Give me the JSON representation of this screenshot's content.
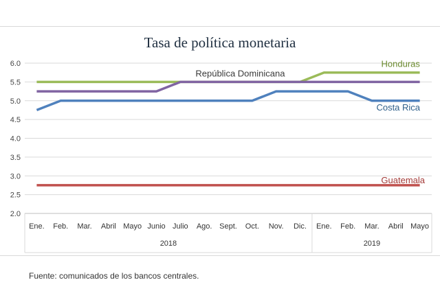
{
  "chart_data": {
    "type": "line",
    "title": "Tasa de política monetaria",
    "xlabel": "",
    "ylabel": "",
    "ylim": [
      2.0,
      6.0
    ],
    "yticks": [
      "6.0",
      "5.5",
      "5.0",
      "4.5",
      "4.0",
      "3.5",
      "3.0",
      "2.5",
      "2.0"
    ],
    "grid": true,
    "categories": [
      "Ene.",
      "Feb.",
      "Mar.",
      "Abril",
      "Mayo",
      "Junio",
      "Julio",
      "Ago.",
      "Sept.",
      "Oct.",
      "Nov.",
      "Dic.",
      "Ene.",
      "Feb.",
      "Mar.",
      "Abril",
      "Mayo"
    ],
    "groups": [
      {
        "label": "2018",
        "count": 12
      },
      {
        "label": "2019",
        "count": 5
      }
    ],
    "series": [
      {
        "name": "Honduras",
        "color": "#9bbb59",
        "values": [
          5.5,
          5.5,
          5.5,
          5.5,
          5.5,
          5.5,
          5.5,
          5.5,
          5.5,
          5.5,
          5.5,
          5.5,
          5.75,
          5.75,
          5.75,
          5.75,
          5.75
        ]
      },
      {
        "name": "República Dominicana",
        "color": "#8064a2",
        "values": [
          5.25,
          5.25,
          5.25,
          5.25,
          5.25,
          5.25,
          5.5,
          5.5,
          5.5,
          5.5,
          5.5,
          5.5,
          5.5,
          5.5,
          5.5,
          5.5,
          5.5
        ]
      },
      {
        "name": "Costa Rica",
        "color": "#4f81bd",
        "values": [
          4.75,
          5.0,
          5.0,
          5.0,
          5.0,
          5.0,
          5.0,
          5.0,
          5.0,
          5.0,
          5.25,
          5.25,
          5.25,
          5.25,
          5.0,
          5.0,
          5.0
        ]
      },
      {
        "name": "Guatemala",
        "color": "#c0504d",
        "values": [
          2.75,
          2.75,
          2.75,
          2.75,
          2.75,
          2.75,
          2.75,
          2.75,
          2.75,
          2.75,
          2.75,
          2.75,
          2.75,
          2.75,
          2.75,
          2.75,
          2.75
        ]
      }
    ]
  },
  "source": "Fuente: comunicados de los bancos centrales."
}
